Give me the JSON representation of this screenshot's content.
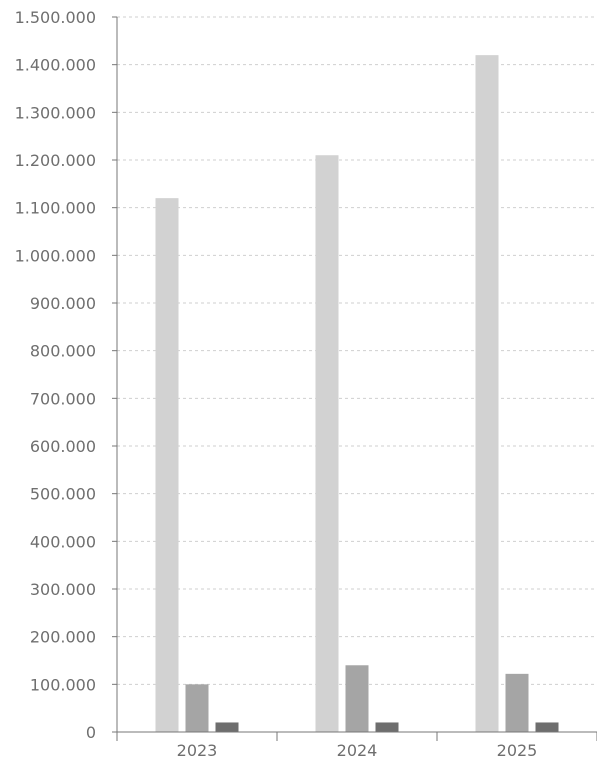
{
  "chart_data": {
    "type": "bar",
    "title": "",
    "xlabel": "",
    "ylabel": "",
    "categories": [
      "2023",
      "2024",
      "2025"
    ],
    "series": [
      {
        "values": [
          1120000,
          1210000,
          1420000
        ],
        "color": "#d2d2d2"
      },
      {
        "values": [
          100000,
          140000,
          122000
        ],
        "color": "#a5a5a5"
      },
      {
        "values": [
          20000,
          20000,
          20000
        ],
        "color": "#6e6e6e"
      }
    ],
    "ylim": [
      0,
      1500000
    ],
    "yticks": [
      0,
      100000,
      200000,
      300000,
      400000,
      500000,
      600000,
      700000,
      800000,
      900000,
      1000000,
      1100000,
      1200000,
      1300000,
      1400000,
      1500000
    ],
    "ytick_labels": [
      "0",
      "100.000",
      "200.000",
      "300.000",
      "400.000",
      "500.000",
      "600.000",
      "700.000",
      "800.000",
      "900.000",
      "1.000.000",
      "1.100.000",
      "1.200.000",
      "1.300.000",
      "1.400.000",
      "1.500.000"
    ],
    "grid": true,
    "legend": "none"
  }
}
